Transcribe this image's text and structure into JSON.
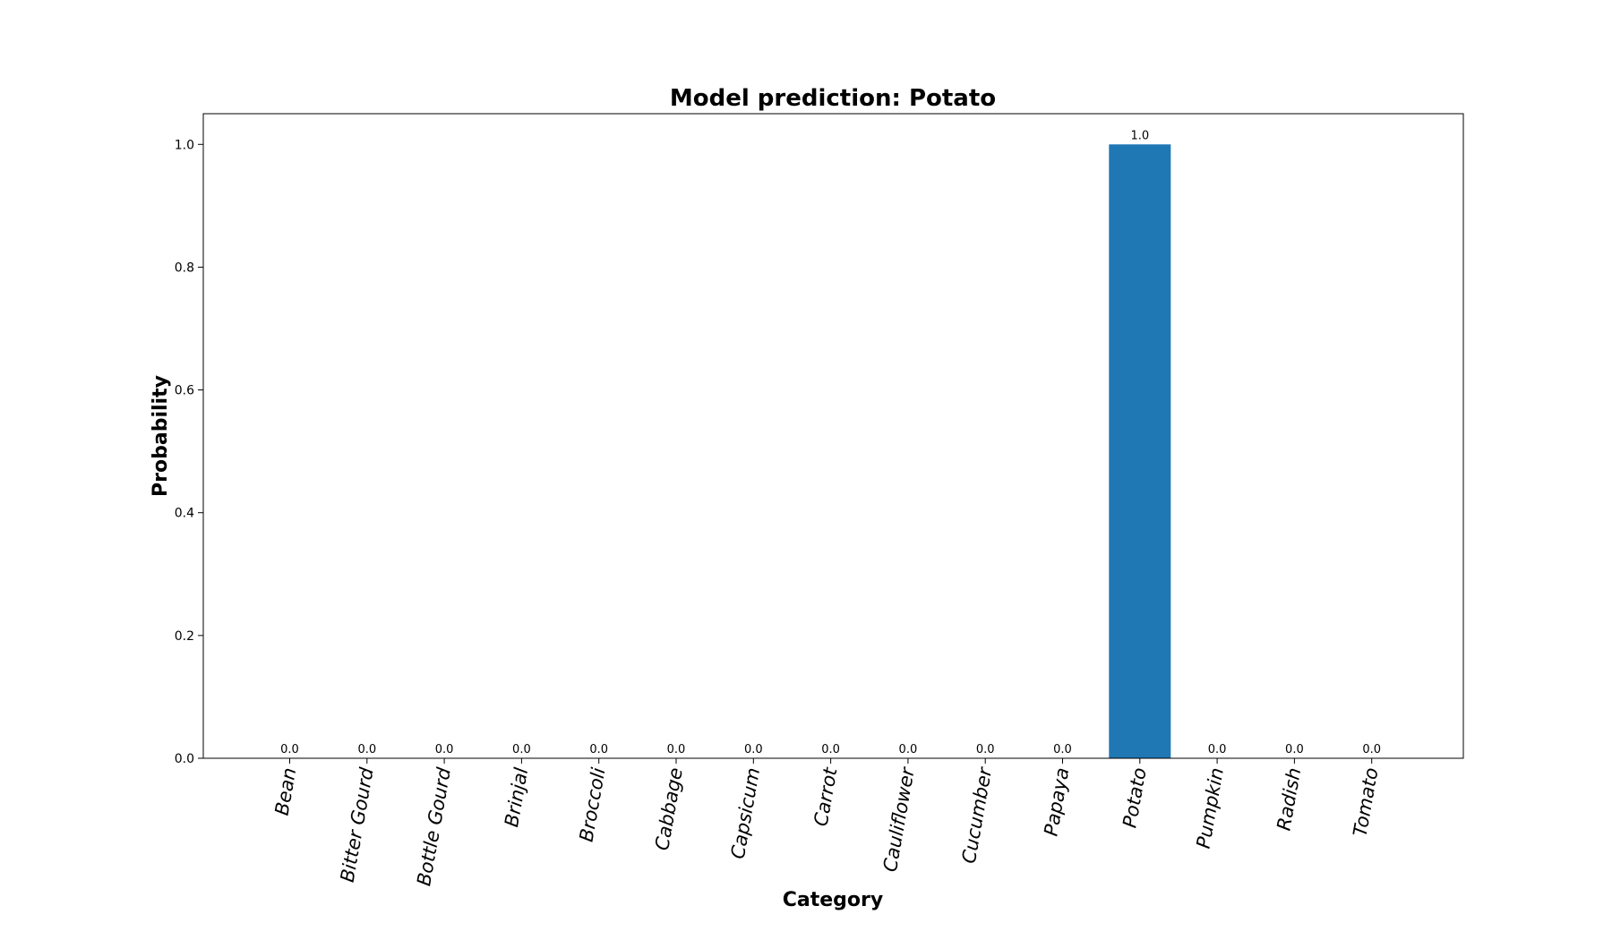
{
  "chart_data": {
    "type": "bar",
    "title": "Model prediction: Potato",
    "xlabel": "Category",
    "ylabel": "Probability",
    "categories": [
      "Bean",
      "Bitter Gourd",
      "Bottle Gourd",
      "Brinjal",
      "Broccoli",
      "Cabbage",
      "Capsicum",
      "Carrot",
      "Cauliflower",
      "Cucumber",
      "Papaya",
      "Potato",
      "Pumpkin",
      "Radish",
      "Tomato"
    ],
    "values": [
      0.0,
      0.0,
      0.0,
      0.0,
      0.0,
      0.0,
      0.0,
      0.0,
      0.0,
      0.0,
      0.0,
      1.0,
      0.0,
      0.0,
      0.0
    ],
    "value_labels": [
      "0.0",
      "0.0",
      "0.0",
      "0.0",
      "0.0",
      "0.0",
      "0.0",
      "0.0",
      "0.0",
      "0.0",
      "0.0",
      "1.0",
      "0.0",
      "0.0",
      "0.0"
    ],
    "yticks": [
      "0.0",
      "0.2",
      "0.4",
      "0.6",
      "0.8",
      "1.0"
    ],
    "ylim": [
      0,
      1.05
    ],
    "grid": false,
    "bar_color": "#1f77b4"
  }
}
